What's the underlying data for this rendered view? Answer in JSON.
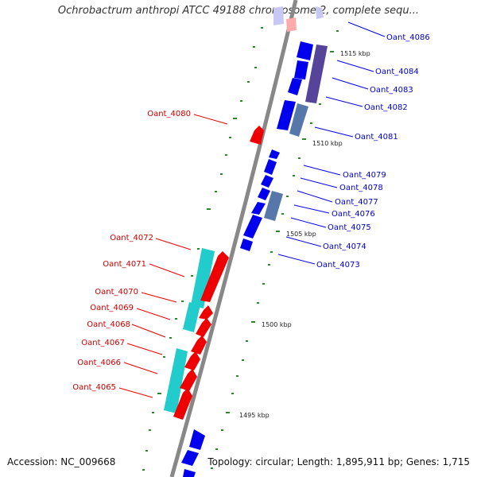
{
  "title": "Ochrobactrum anthropi ATCC 49188 chromosome 2, complete sequ...",
  "accession": "Accession: NC_009668",
  "topology": "Topology: circular; Length: 1,895,911 bp; Genes: 1,715",
  "scale_labels": [
    "1515 kbp",
    "1510 kbp",
    "1505 kbp",
    "1500 kbp",
    "1495 kbp"
  ],
  "colors": {
    "forward": "#0000ee",
    "reverse": "#ee0000",
    "rna": "#22cccc",
    "other": "#5577aa",
    "purple": "#554499"
  },
  "genes_forward": [
    "Oant_4086",
    "Oant_4084",
    "Oant_4083",
    "Oant_4082",
    "Oant_4081",
    "Oant_4079",
    "Oant_4078",
    "Oant_4077",
    "Oant_4076",
    "Oant_4075",
    "Oant_4074",
    "Oant_4073"
  ],
  "genes_reverse": [
    "Oant_4080",
    "Oant_4072",
    "Oant_4071",
    "Oant_4070",
    "Oant_4069",
    "Oant_4068",
    "Oant_4067",
    "Oant_4066",
    "Oant_4065"
  ]
}
